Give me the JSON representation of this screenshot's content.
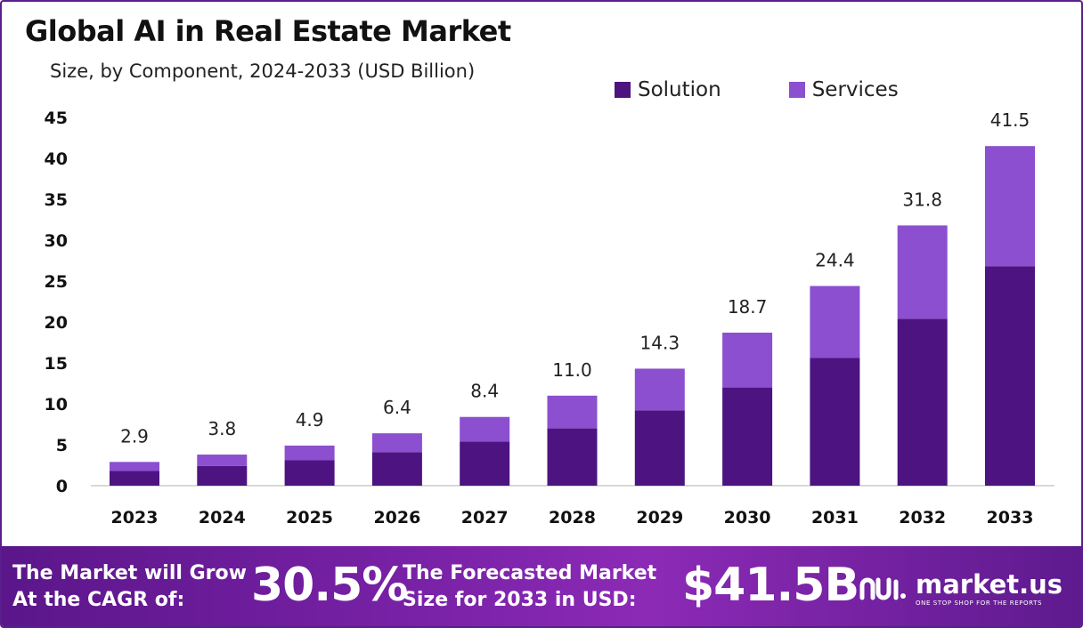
{
  "title": "Global AI in Real Estate Market",
  "subtitle": "Size, by Component, 2024-2033 (USD Billion)",
  "colors": {
    "solution": "#4d1380",
    "services": "#8b4fcf",
    "axis": "#cccccc"
  },
  "chart_data": {
    "type": "bar",
    "stacked": true,
    "categories": [
      "2023",
      "2024",
      "2025",
      "2026",
      "2027",
      "2028",
      "2029",
      "2030",
      "2031",
      "2032",
      "2033"
    ],
    "series": [
      {
        "name": "Solution",
        "values": [
          1.8,
          2.4,
          3.1,
          4.1,
          5.4,
          7.0,
          9.2,
          12.0,
          15.6,
          20.4,
          26.8
        ]
      },
      {
        "name": "Services",
        "values": [
          1.1,
          1.4,
          1.8,
          2.3,
          3.0,
          4.0,
          5.1,
          6.7,
          8.8,
          11.4,
          14.7
        ]
      }
    ],
    "totals": [
      "2.9",
      "3.8",
      "4.9",
      "6.4",
      "8.4",
      "11.0",
      "14.3",
      "18.7",
      "24.4",
      "31.8",
      "41.5"
    ],
    "yticks": [
      "0",
      "5",
      "10",
      "15",
      "20",
      "25",
      "30",
      "35",
      "40",
      "45"
    ],
    "ylim": [
      0,
      45
    ],
    "grid": false,
    "legend_position": "top-right"
  },
  "legend": {
    "solution": "Solution",
    "services": "Services"
  },
  "footer": {
    "cagr_text": "The Market will Grow At the CAGR of:",
    "cagr_value": "30.5%",
    "forecast_text": "The Forecasted Market Size for 2033 in USD:",
    "forecast_value": "$41.5B",
    "logo_name": "market.us",
    "logo_tagline": "ONE STOP SHOP FOR THE REPORTS"
  }
}
